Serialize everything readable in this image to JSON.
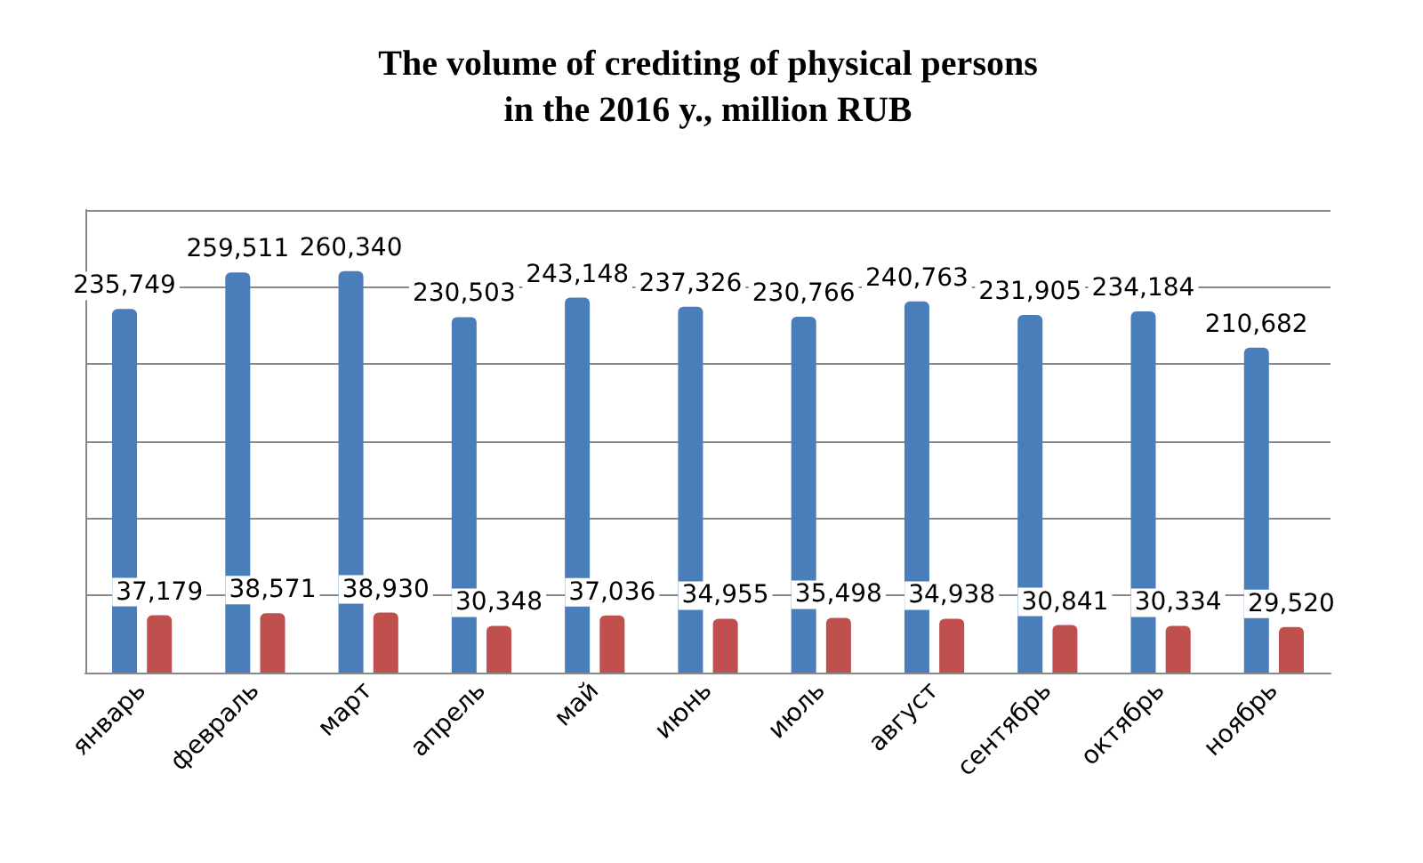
{
  "chart_data": {
    "type": "bar",
    "title": "The volume of crediting of physical persons\nin the 2016 y., million RUB",
    "categories": [
      "январь",
      "февраль",
      "март",
      "апрель",
      "май",
      "июнь",
      "июль",
      "август",
      "сентябрь",
      "октябрь",
      "ноябрь"
    ],
    "series": [
      {
        "color": "#4a7ebb",
        "values": [
          235749,
          259511,
          260340,
          230503,
          243148,
          237326,
          230766,
          240763,
          231905,
          234184,
          210682
        ],
        "value_labels": [
          "235,749",
          "259,511",
          "260,340",
          "230,503",
          "243,148",
          "237,326",
          "230,766",
          "240,763",
          "231,905",
          "234,184",
          "210,682"
        ]
      },
      {
        "color": "#c0504d",
        "values": [
          37179,
          38571,
          38930,
          30348,
          37036,
          34955,
          35498,
          34938,
          30841,
          30334,
          29520
        ],
        "value_labels": [
          "37,179",
          "38,571",
          "38,930",
          "30,348",
          "37,036",
          "34,955",
          "35,498",
          "34,938",
          "30,841",
          "30,334",
          "29,520"
        ]
      }
    ],
    "grid": "y"
  }
}
